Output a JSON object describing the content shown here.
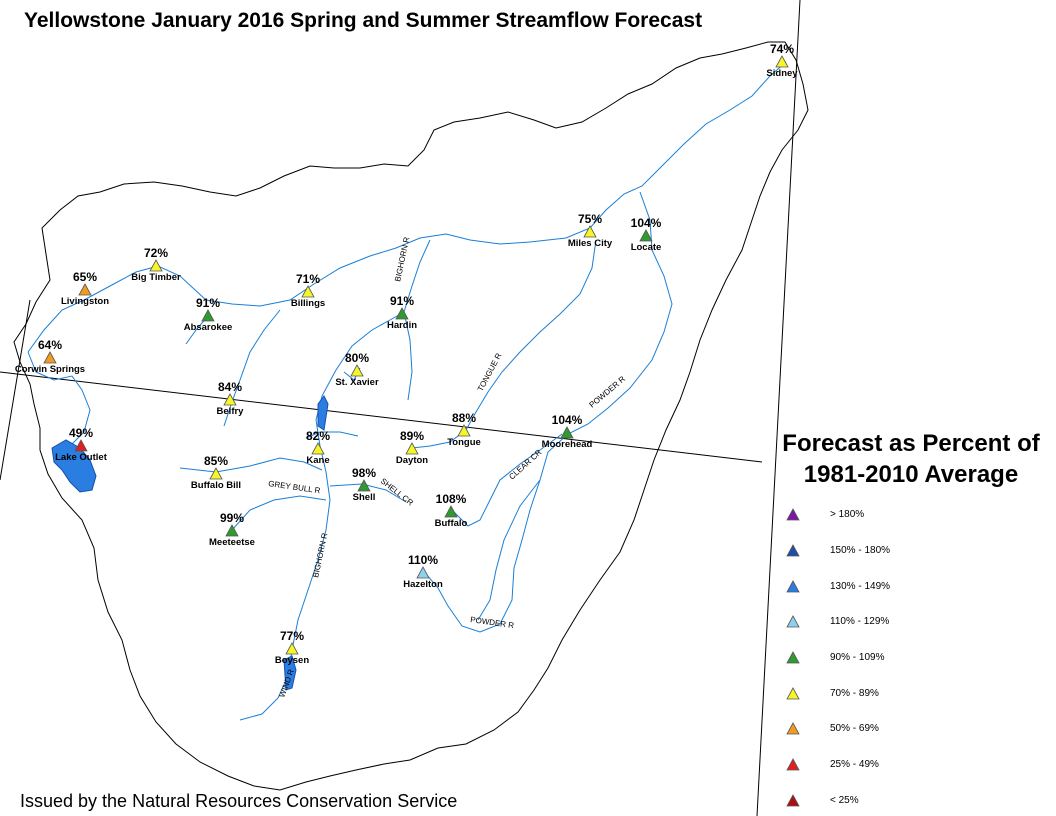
{
  "title": "Yellowstone January 2016 Spring and Summer Streamflow Forecast",
  "issued_by": "Issued by the Natural Resources Conservation Service",
  "legend": {
    "title_line1": "Forecast as Percent of",
    "title_line2": "1981-2010 Average",
    "items": [
      {
        "label": "> 180%",
        "color": "#7b16a8"
      },
      {
        "label": "150% - 180%",
        "color": "#1f4ea8"
      },
      {
        "label": "130% - 149%",
        "color": "#2a7de1"
      },
      {
        "label": "110% - 129%",
        "color": "#8fd0ee"
      },
      {
        "label": "90% - 109%",
        "color": "#2f9b2f"
      },
      {
        "label": "70% - 89%",
        "color": "#f5f52a"
      },
      {
        "label": "50% - 69%",
        "color": "#f39a21"
      },
      {
        "label": "25% - 49%",
        "color": "#e0201e"
      },
      {
        "label": "< 25%",
        "color": "#b00d12"
      }
    ]
  },
  "sites": [
    {
      "name": "Sidney",
      "percent": "74%",
      "color": "#f5f52a"
    },
    {
      "name": "Miles City",
      "percent": "75%",
      "color": "#f5f52a"
    },
    {
      "name": "Locate",
      "percent": "104%",
      "color": "#2f9b2f"
    },
    {
      "name": "Big Timber",
      "percent": "72%",
      "color": "#f5f52a"
    },
    {
      "name": "Livingston",
      "percent": "65%",
      "color": "#f39a21"
    },
    {
      "name": "Billings",
      "percent": "71%",
      "color": "#f5f52a"
    },
    {
      "name": "Absarokee",
      "percent": "91%",
      "color": "#2f9b2f"
    },
    {
      "name": "Hardin",
      "percent": "91%",
      "color": "#2f9b2f"
    },
    {
      "name": "Corwin Springs",
      "percent": "64%",
      "color": "#f39a21"
    },
    {
      "name": "St. Xavier",
      "percent": "80%",
      "color": "#f5f52a"
    },
    {
      "name": "Belfry",
      "percent": "84%",
      "color": "#f5f52a"
    },
    {
      "name": "Tongue",
      "percent": "88%",
      "color": "#f5f52a"
    },
    {
      "name": "Moorehead",
      "percent": "104%",
      "color": "#2f9b2f"
    },
    {
      "name": "Lake Outlet",
      "percent": "49%",
      "color": "#e0201e"
    },
    {
      "name": "Kane",
      "percent": "82%",
      "color": "#f5f52a"
    },
    {
      "name": "Dayton",
      "percent": "89%",
      "color": "#f5f52a"
    },
    {
      "name": "Buffalo Bill",
      "percent": "85%",
      "color": "#f5f52a"
    },
    {
      "name": "Shell",
      "percent": "98%",
      "color": "#2f9b2f"
    },
    {
      "name": "Buffalo",
      "percent": "108%",
      "color": "#2f9b2f"
    },
    {
      "name": "Meeteetse",
      "percent": "99%",
      "color": "#2f9b2f"
    },
    {
      "name": "Hazelton",
      "percent": "110%",
      "color": "#8fd0ee"
    },
    {
      "name": "Boysen",
      "percent": "77%",
      "color": "#f5f52a"
    }
  ],
  "river_labels": [
    {
      "text": "BIGHORN R"
    },
    {
      "text": "TONGUE R"
    },
    {
      "text": "POWDER R"
    },
    {
      "text": "CLEAR CR"
    },
    {
      "text": "SHELL CR"
    },
    {
      "text": "GREY BULL R"
    },
    {
      "text": "BIGHORN R"
    },
    {
      "text": "POWDER R"
    },
    {
      "text": "WIND R"
    }
  ],
  "colors": {
    "river": "#1a7fd6",
    "boundary": "#000000",
    "lake": "#2a7de1"
  }
}
